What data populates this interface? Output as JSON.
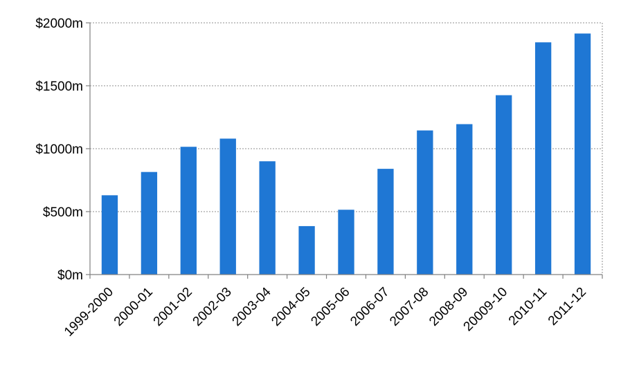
{
  "chart_data": {
    "type": "bar",
    "categories": [
      "1999-2000",
      "2000-01",
      "2001-02",
      "2002-03",
      "2003-04",
      "2004-05",
      "2005-06",
      "2006-07",
      "2007-08",
      "2008-09",
      "20009-10",
      "2010-11",
      "2011-12"
    ],
    "values": [
      630,
      815,
      1015,
      1080,
      900,
      385,
      515,
      840,
      1145,
      1195,
      1425,
      1845,
      1915
    ],
    "y_ticks": [
      "$0m",
      "$500m",
      "$1000m",
      "$1500m",
      "$2000m"
    ],
    "ylim": [
      0,
      2000
    ],
    "title": "",
    "xlabel": "",
    "ylabel": "",
    "grid": true,
    "bar_color": "#1f77d4"
  }
}
